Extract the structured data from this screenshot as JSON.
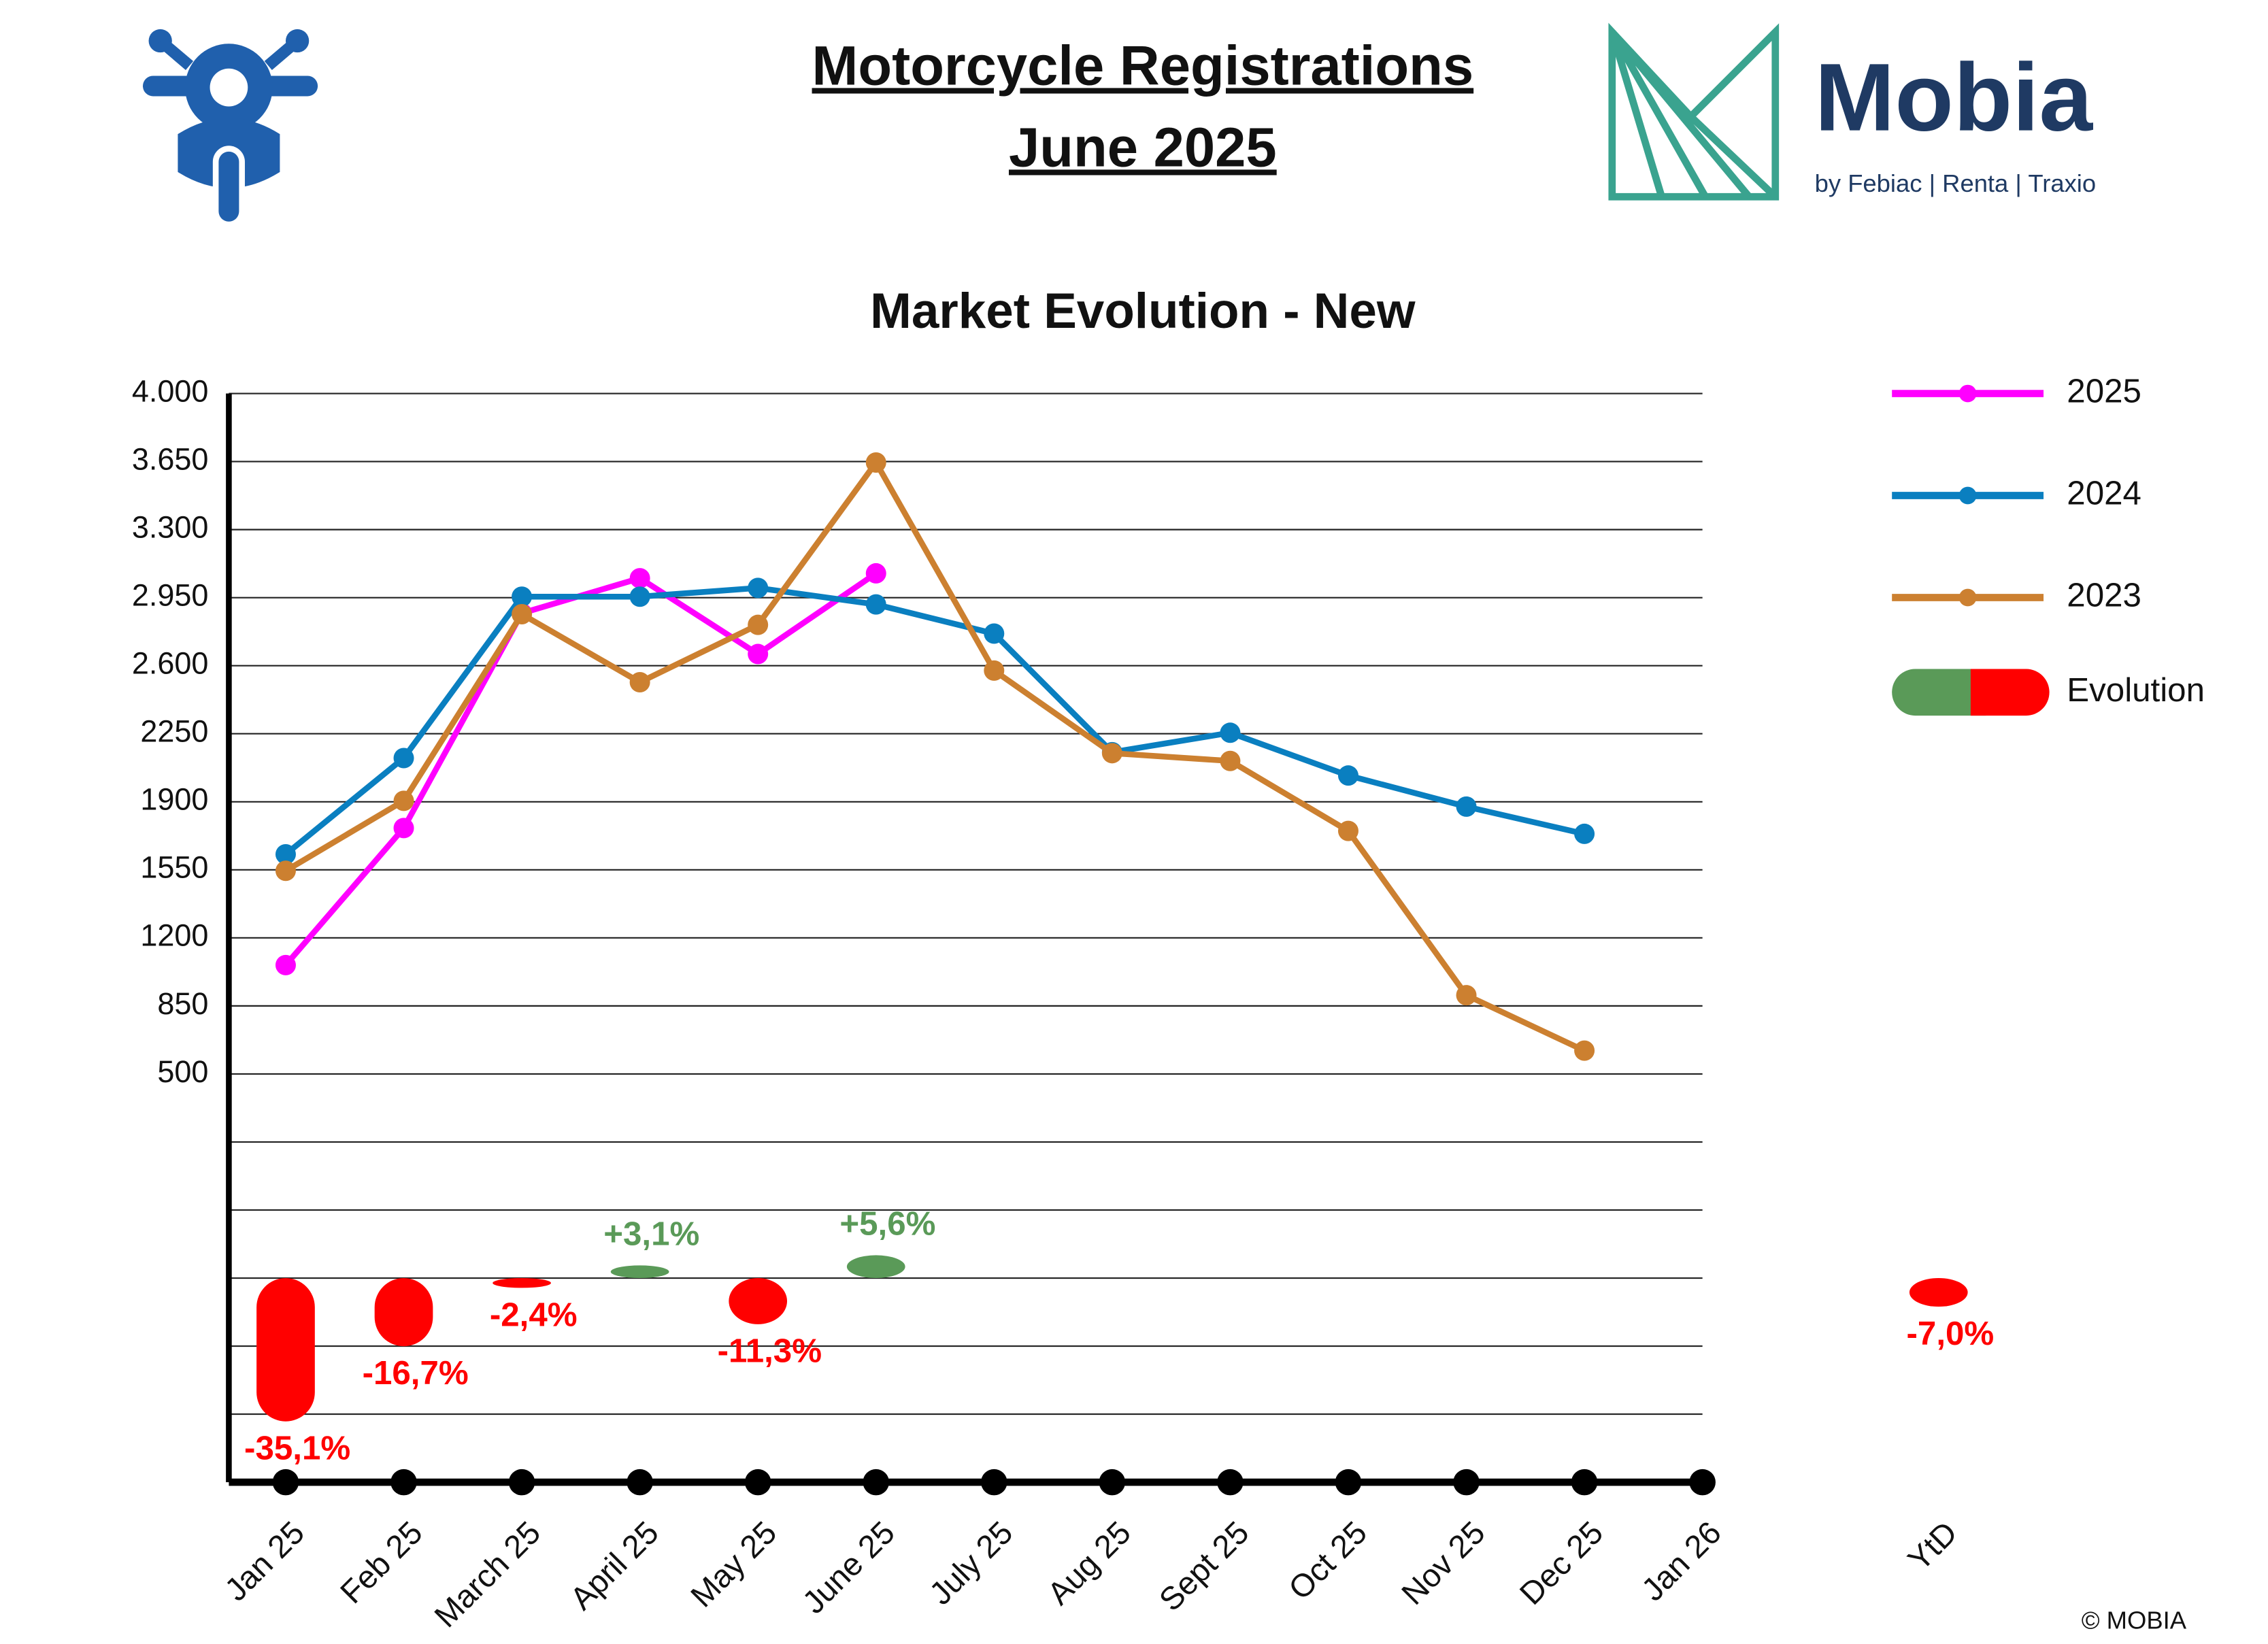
{
  "header": {
    "title_line1": "Motorcycle Registrations",
    "title_line2": "June 2025",
    "logo_name": "Mobia",
    "logo_tagline": "by Febiac | Renta | Traxio"
  },
  "chart_data": {
    "type": "line",
    "title": "Market Evolution - New",
    "categories": [
      "Jan 25",
      "Feb 25",
      "March 25",
      "April 25",
      "May 25",
      "June 25",
      "July 25",
      "Aug 25",
      "Sept 25",
      "Oct 25",
      "Nov 25",
      "Dec 25",
      "Jan 26"
    ],
    "series": [
      {
        "name": "2025",
        "color": "#ff00ff",
        "values": [
          1060,
          1765,
          2870,
          3050,
          2660,
          3075,
          null,
          null,
          null,
          null,
          null,
          null,
          null
        ]
      },
      {
        "name": "2024",
        "color": "#0a7fc0",
        "values": [
          1630,
          2125,
          2955,
          2955,
          3000,
          2915,
          2765,
          2155,
          2255,
          2035,
          1875,
          1735,
          null
        ]
      },
      {
        "name": "2023",
        "color": "#cc8030",
        "values": [
          1545,
          1905,
          2865,
          2515,
          2810,
          3645,
          2575,
          2150,
          2110,
          1750,
          905,
          620,
          null
        ]
      }
    ],
    "ylim": [
      -1600,
      4000
    ],
    "yticks": [
      500,
      850,
      1200,
      1550,
      1900,
      2250,
      {
        "value": 2600,
        "label": "2.600"
      },
      {
        "value": 2950,
        "label": "2.950"
      },
      {
        "value": 3300,
        "label": "3.300"
      },
      {
        "value": 3650,
        "label": "3.650"
      },
      {
        "value": 4000,
        "label": "4.000"
      }
    ],
    "minor_gridlines": [
      150,
      -200,
      -550,
      -900,
      -1250
    ],
    "grid": true,
    "evolution": {
      "name": "Evolution",
      "ylim": [
        -50,
        50
      ],
      "positive_color": "#5a9a58",
      "negative_color": "#ff0000",
      "values": [
        -35.1,
        -16.7,
        -2.4,
        3.1,
        -11.3,
        5.6
      ],
      "value_labels": [
        "-35,1%",
        "-16,7%",
        "-2,4%",
        "+3,1%",
        "-11,3%",
        "+5,6%"
      ],
      "ytd": {
        "label": "YtD",
        "value": -7.0,
        "value_label": "-7,0%"
      }
    },
    "copyright": "© MOBIA"
  }
}
